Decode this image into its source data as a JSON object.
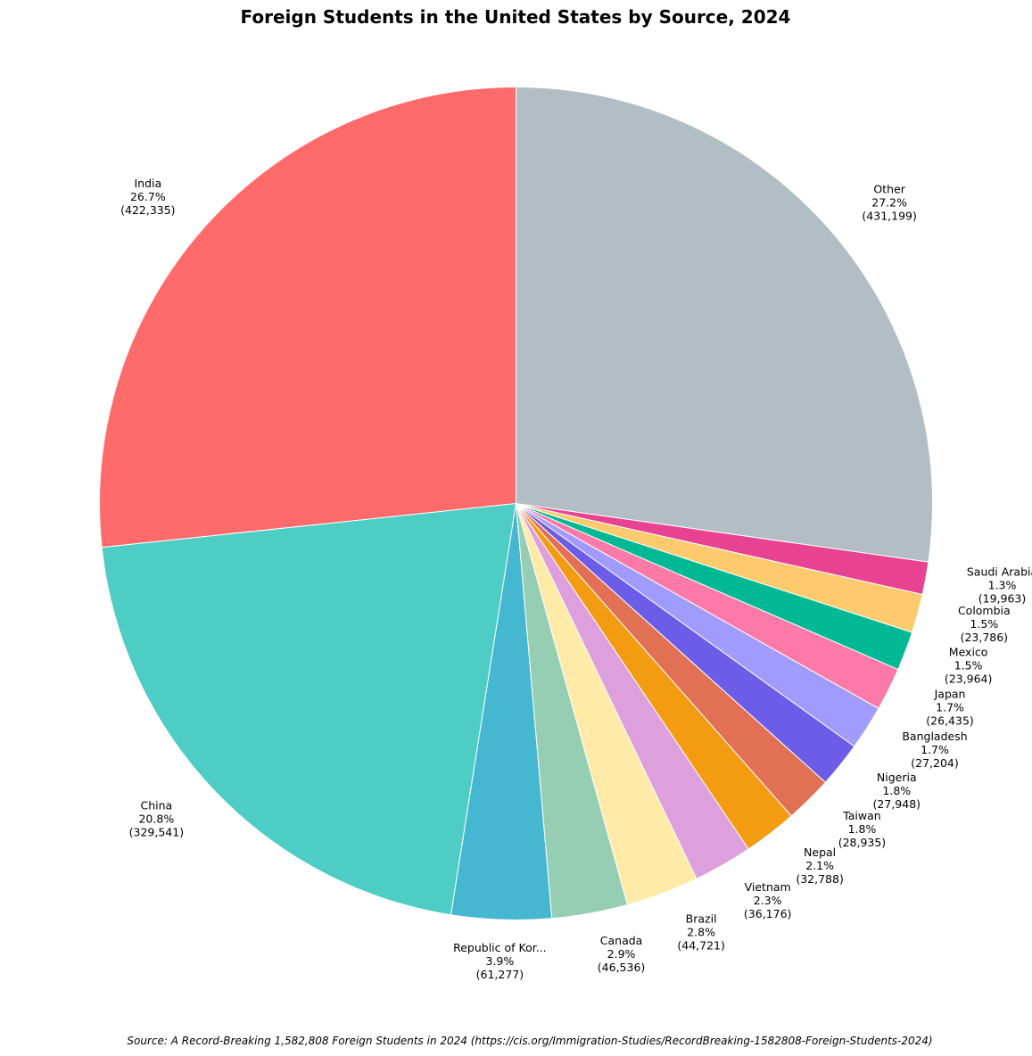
{
  "chart_data": {
    "type": "pie",
    "title": "Foreign Students in the United States by Source, 2024",
    "source": "Source: A Record-Breaking 1,582,808 Foreign Students in 2024 (https://cis.org/Immigration-Studies/RecordBreaking-1582808-Foreign-Students-2024)",
    "start_angle_deg": 90,
    "direction": "counterclockwise",
    "slices": [
      {
        "label": "India",
        "pct": "26.7%",
        "count": "(422,335)",
        "value": 422335,
        "color": "#ff6b6b"
      },
      {
        "label": "China",
        "pct": "20.8%",
        "count": "(329,541)",
        "value": 329541,
        "color": "#4ecdc4"
      },
      {
        "label": "Republic of Kor...",
        "pct": "3.9%",
        "count": "(61,277)",
        "value": 61277,
        "color": "#45b7d1"
      },
      {
        "label": "Canada",
        "pct": "2.9%",
        "count": "(46,536)",
        "value": 46536,
        "color": "#96ceb4"
      },
      {
        "label": "Brazil",
        "pct": "2.8%",
        "count": "(44,721)",
        "value": 44721,
        "color": "#ffeaa7"
      },
      {
        "label": "Vietnam",
        "pct": "2.3%",
        "count": "(36,176)",
        "value": 36176,
        "color": "#dda0dd"
      },
      {
        "label": "Nepal",
        "pct": "2.1%",
        "count": "(32,788)",
        "value": 32788,
        "color": "#f39c12"
      },
      {
        "label": "Taiwan",
        "pct": "1.8%",
        "count": "(28,935)",
        "value": 28935,
        "color": "#e17055"
      },
      {
        "label": "Nigeria",
        "pct": "1.8%",
        "count": "(27,948)",
        "value": 27948,
        "color": "#6c5ce7"
      },
      {
        "label": "Bangladesh",
        "pct": "1.7%",
        "count": "(27,204)",
        "value": 27204,
        "color": "#a29bfe"
      },
      {
        "label": "Japan",
        "pct": "1.7%",
        "count": "(26,435)",
        "value": 26435,
        "color": "#fd79a8"
      },
      {
        "label": "Mexico",
        "pct": "1.5%",
        "count": "(23,964)",
        "value": 23964,
        "color": "#00b894"
      },
      {
        "label": "Colombia",
        "pct": "1.5%",
        "count": "(23,786)",
        "value": 23786,
        "color": "#fdcb6e"
      },
      {
        "label": "Saudi Arabia",
        "pct": "1.3%",
        "count": "(19,963)",
        "value": 19963,
        "color": "#e84393"
      },
      {
        "label": "Other",
        "pct": "27.2%",
        "count": "(431,199)",
        "value": 431199,
        "color": "#b2bec3"
      }
    ]
  }
}
